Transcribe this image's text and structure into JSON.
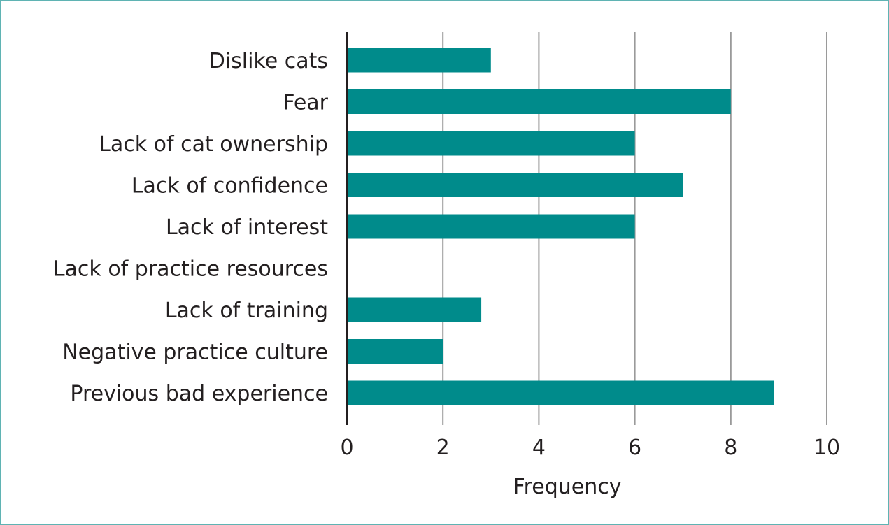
{
  "chart_data": {
    "type": "bar",
    "orientation": "horizontal",
    "title": "",
    "xlabel": "Frequency",
    "ylabel": "",
    "categories": [
      "Dislike cats",
      "Fear",
      "Lack of cat ownership",
      "Lack of confidence",
      "Lack of interest",
      "Lack of practice resources",
      "Lack of training",
      "Negative practice culture",
      "Previous bad experience"
    ],
    "values": [
      3,
      8,
      6,
      7,
      6,
      0,
      2.8,
      2,
      8.9
    ],
    "xlim": [
      0,
      10
    ],
    "xticks": [
      "0",
      "2",
      "4",
      "6",
      "8",
      "10"
    ],
    "grid": "vertical",
    "legend": "none",
    "bar_color": "#008b8b",
    "gridline_color": "#9a9a9a",
    "frame_color": "#5fb3b3"
  }
}
